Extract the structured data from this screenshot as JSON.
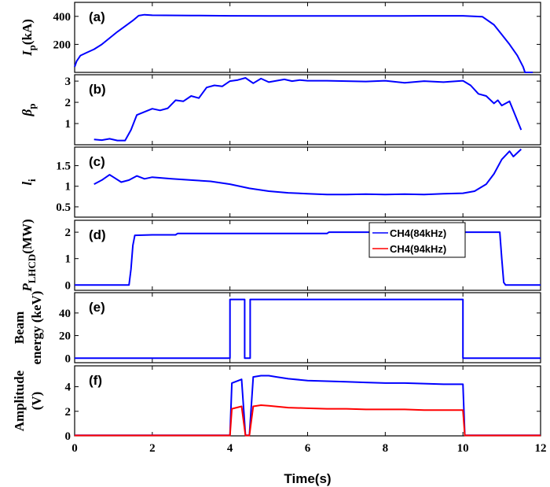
{
  "chart_data": {
    "type": "line",
    "x_label": "Time(s)",
    "x_ticks": [
      "0",
      "2",
      "4",
      "6",
      "8",
      "10",
      "12"
    ],
    "xlim": [
      0,
      12
    ],
    "legend": {
      "placement": "inside panel (d), right",
      "entries": [
        {
          "name": "CH4(84kHz)",
          "color": "#0000ff"
        },
        {
          "name": "CH4(94kHz)",
          "color": "#ff0000"
        }
      ]
    },
    "panels": [
      {
        "id": "a",
        "tag": "(a)",
        "ylabel_main": "I",
        "ylabel_sub": "p",
        "ylabel_unit": "(kA)",
        "ylim": [
          0,
          500
        ],
        "yticks": [
          200,
          400
        ],
        "ytick_labels": [
          "200",
          "400"
        ],
        "series": [
          {
            "color": "#0000ff",
            "x": [
              0,
              0.05,
              0.15,
              0.3,
              0.5,
              0.7,
              0.9,
              1.1,
              1.3,
              1.5,
              1.65,
              1.8,
              2,
              3,
              4,
              5,
              6,
              7,
              8,
              9,
              10,
              10.5,
              10.8,
              11,
              11.2,
              11.4,
              11.55,
              11.6,
              11.8
            ],
            "y": [
              40,
              80,
              120,
              140,
              165,
              200,
              245,
              290,
              330,
              370,
              405,
              412,
              408,
              406,
              404,
              403,
              403,
              403,
              403,
              404,
              404,
              398,
              340,
              270,
              200,
              120,
              40,
              0,
              0
            ]
          }
        ]
      },
      {
        "id": "b",
        "tag": "(b)",
        "ylabel_main": "β",
        "ylabel_sub": "p",
        "ylabel_unit": "",
        "ylim": [
          0,
          3.3
        ],
        "yticks": [
          1,
          2,
          3
        ],
        "ytick_labels": [
          "1",
          "2",
          "3"
        ],
        "series": [
          {
            "color": "#0000ff",
            "x": [
              0.5,
              0.7,
              0.9,
              1.1,
              1.3,
              1.45,
              1.6,
              1.8,
              2.0,
              2.2,
              2.4,
              2.6,
              2.8,
              3.0,
              3.2,
              3.4,
              3.6,
              3.8,
              4.0,
              4.2,
              4.4,
              4.6,
              4.8,
              5.0,
              5.2,
              5.4,
              5.6,
              5.8,
              6.0,
              6.5,
              7.0,
              7.5,
              8.0,
              8.5,
              9.0,
              9.5,
              10.0,
              10.2,
              10.4,
              10.6,
              10.8,
              10.9,
              11.0,
              11.2,
              11.3,
              11.5
            ],
            "y": [
              0.25,
              0.22,
              0.28,
              0.2,
              0.2,
              0.7,
              1.4,
              1.55,
              1.7,
              1.62,
              1.72,
              2.1,
              2.05,
              2.3,
              2.2,
              2.7,
              2.8,
              2.75,
              3.0,
              3.05,
              3.15,
              2.9,
              3.12,
              2.95,
              3.02,
              3.08,
              3.0,
              3.05,
              3.02,
              3.02,
              3.0,
              2.98,
              3.02,
              2.92,
              3.0,
              2.95,
              3.02,
              2.8,
              2.4,
              2.3,
              1.95,
              2.1,
              1.85,
              2.05,
              1.6,
              0.7
            ]
          }
        ]
      },
      {
        "id": "c",
        "tag": "(c)",
        "ylabel_main": "l",
        "ylabel_sub": "i",
        "ylabel_unit": "",
        "ylim": [
          0.25,
          1.95
        ],
        "yticks": [
          0.5,
          1,
          1.5
        ],
        "ytick_labels": [
          "0.5",
          "1",
          "1.5"
        ],
        "series": [
          {
            "color": "#0000ff",
            "x": [
              0.5,
              0.7,
              0.9,
              1.0,
              1.2,
              1.4,
              1.6,
              1.8,
              2.0,
              2.5,
              3.0,
              3.5,
              4.0,
              4.5,
              5.0,
              5.5,
              6.0,
              6.5,
              7.0,
              7.5,
              8.0,
              8.5,
              9.0,
              9.5,
              10.0,
              10.3,
              10.6,
              10.8,
              11.0,
              11.2,
              11.3,
              11.5
            ],
            "y": [
              1.05,
              1.15,
              1.28,
              1.22,
              1.1,
              1.15,
              1.25,
              1.18,
              1.22,
              1.18,
              1.15,
              1.12,
              1.05,
              0.95,
              0.88,
              0.84,
              0.82,
              0.8,
              0.8,
              0.81,
              0.8,
              0.81,
              0.8,
              0.82,
              0.83,
              0.88,
              1.05,
              1.3,
              1.65,
              1.85,
              1.72,
              1.9
            ]
          }
        ]
      },
      {
        "id": "d",
        "tag": "(d)",
        "ylabel_main": "P",
        "ylabel_sub": "LHCD",
        "ylabel_unit": "(MW)",
        "ylim": [
          -0.2,
          2.45
        ],
        "yticks": [
          0,
          1,
          2
        ],
        "ytick_labels": [
          "0",
          "1",
          "2"
        ],
        "series": [
          {
            "color": "#0000ff",
            "x": [
              0,
              1.4,
              1.45,
              1.5,
              1.55,
              2.0,
              2.6,
              2.65,
              6.5,
              6.55,
              10.95,
              11.0,
              11.05,
              11.1,
              12
            ],
            "y": [
              0,
              0,
              0.6,
              1.5,
              1.88,
              1.9,
              1.9,
              1.95,
              1.95,
              2.0,
              2.0,
              1.0,
              0.1,
              0,
              0
            ]
          }
        ]
      },
      {
        "id": "e",
        "tag": "(e)",
        "ylabel_main": "Beam",
        "ylabel_sub": "",
        "ylabel_unit": "energy (keV)",
        "ylim": [
          -4,
          58
        ],
        "yticks": [
          0,
          20,
          40
        ],
        "ytick_labels": [
          "0",
          "20",
          "40"
        ],
        "series": [
          {
            "color": "#0000ff",
            "x": [
              0,
              4.0,
              4.0,
              4.38,
              4.38,
              4.52,
              4.52,
              10.0,
              10.0,
              12
            ],
            "y": [
              0,
              0,
              52,
              52,
              0,
              0,
              52,
              52,
              0,
              0
            ]
          }
        ]
      },
      {
        "id": "f",
        "tag": "(f)",
        "ylabel_main": "Amplitude",
        "ylabel_sub": "",
        "ylabel_unit": "(V)",
        "ylim": [
          0,
          5.7
        ],
        "yticks": [
          0,
          2,
          4
        ],
        "ytick_labels": [
          "0",
          "2",
          "4"
        ],
        "series": [
          {
            "name": "CH4(84kHz)",
            "color": "#0000ff",
            "x": [
              0,
              4.0,
              4.05,
              4.3,
              4.4,
              4.5,
              4.6,
              4.8,
              5.0,
              5.2,
              5.5,
              6.0,
              6.5,
              7.0,
              7.5,
              8.0,
              8.5,
              9.0,
              9.5,
              10.0,
              10.05,
              12
            ],
            "y": [
              0.05,
              0.05,
              4.3,
              4.6,
              0.05,
              0.05,
              4.8,
              4.9,
              4.9,
              4.8,
              4.65,
              4.5,
              4.45,
              4.4,
              4.35,
              4.3,
              4.3,
              4.25,
              4.2,
              4.2,
              0.05,
              0.05
            ]
          },
          {
            "name": "CH4(94kHz)",
            "color": "#ff0000",
            "x": [
              0,
              4.0,
              4.05,
              4.3,
              4.4,
              4.5,
              4.6,
              4.8,
              5.0,
              5.5,
              6.0,
              6.5,
              7.0,
              7.5,
              8.0,
              8.5,
              9.0,
              9.5,
              10.0,
              10.05,
              12
            ],
            "y": [
              0.03,
              0.03,
              2.2,
              2.4,
              0.03,
              0.03,
              2.4,
              2.5,
              2.45,
              2.3,
              2.25,
              2.2,
              2.2,
              2.15,
              2.15,
              2.15,
              2.1,
              2.1,
              2.1,
              0.03,
              0.03
            ]
          }
        ]
      }
    ]
  }
}
